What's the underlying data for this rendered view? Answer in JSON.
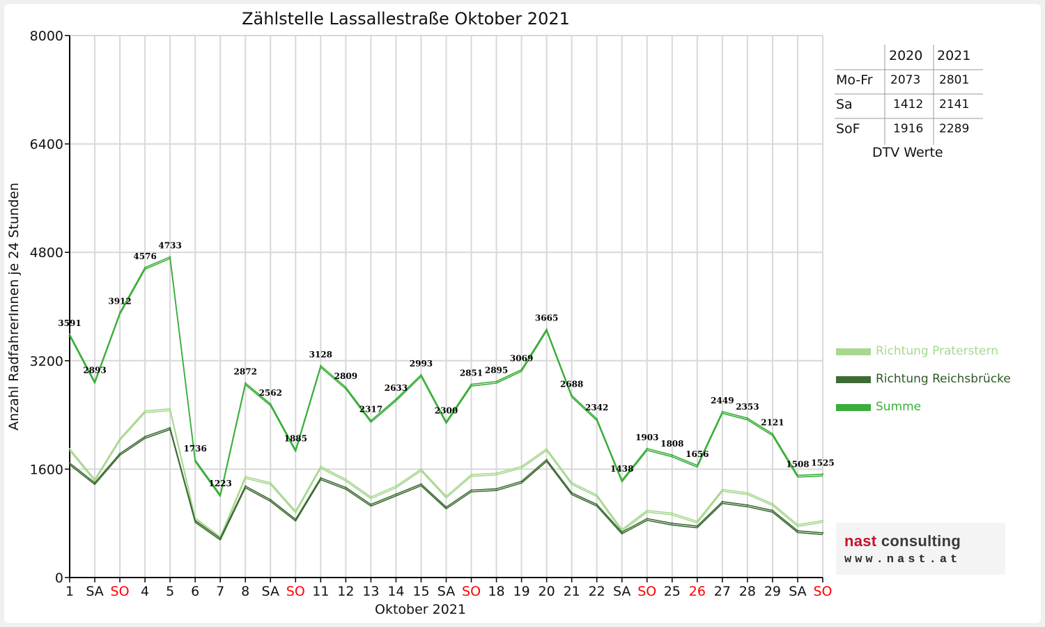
{
  "chart_data": {
    "type": "line",
    "title": "Zählstelle Lassallestraße Oktober 2021",
    "ylabel": "Anzahl RadfahrerInnen je 24 Stunden",
    "xlabel": "Oktober 2021",
    "ylim": [
      0,
      8000
    ],
    "yticks": [
      "0",
      "1600",
      "3200",
      "4800",
      "6400",
      "8000"
    ],
    "ytick_values": [
      0,
      1600,
      3200,
      4800,
      6400,
      8000
    ],
    "grid": true,
    "legend_position": "right",
    "categories": [
      "1",
      "SA",
      "SO",
      "4",
      "5",
      "6",
      "7",
      "8",
      "SA",
      "SO",
      "11",
      "12",
      "13",
      "14",
      "15",
      "SA",
      "SO",
      "18",
      "19",
      "20",
      "21",
      "22",
      "SA",
      "SO",
      "25",
      "26",
      "27",
      "28",
      "29",
      "SA",
      "SO"
    ],
    "red_categories": [
      2,
      9,
      16,
      23,
      25,
      30
    ],
    "series": [
      {
        "name": "Richtung Praterstern",
        "color": "#a8d890",
        "values": [
          1900,
          1450,
          2050,
          2460,
          2490,
          880,
          600,
          1490,
          1400,
          980,
          1640,
          1450,
          1190,
          1350,
          1600,
          1200,
          1520,
          1540,
          1640,
          1900,
          1400,
          1220,
          710,
          990,
          950,
          830,
          1300,
          1250,
          1090,
          780,
          840
        ]
      },
      {
        "name": "Richtung Reichsbrücke",
        "color": "#3e6b34",
        "values": [
          1690,
          1400,
          1830,
          2080,
          2210,
          840,
          580,
          1350,
          1150,
          860,
          1470,
          1330,
          1080,
          1230,
          1380,
          1040,
          1290,
          1310,
          1420,
          1740,
          1250,
          1080,
          670,
          870,
          800,
          760,
          1120,
          1070,
          990,
          690,
          660
        ]
      },
      {
        "name": "Summe",
        "color": "#3aae3a",
        "values": [
          3591,
          2893,
          3912,
          4576,
          4733,
          1736,
          1223,
          2872,
          2562,
          1885,
          3128,
          2809,
          2317,
          2633,
          2993,
          2300,
          2851,
          2895,
          3069,
          3665,
          2688,
          2342,
          1438,
          1903,
          1808,
          1656,
          2449,
          2353,
          2121,
          1508,
          1525
        ],
        "labels": [
          "3591",
          "2893",
          "3912",
          "4576",
          "4733",
          "1736",
          "1223",
          "2872",
          "2562",
          "1885",
          "3128",
          "2809",
          "2317",
          "2633",
          "2993",
          "2300",
          "2851",
          "2895",
          "3069",
          "3665",
          "2688",
          "2342",
          "1438",
          "1903",
          "1808",
          "1656",
          "2449",
          "2353",
          "2121",
          "1508",
          "1525"
        ]
      }
    ]
  },
  "dtv_table": {
    "header": [
      "",
      "2020",
      "2021"
    ],
    "rows": [
      {
        "label": "Mo-Fr",
        "y2020": "2073",
        "y2021": "2801"
      },
      {
        "label": "Sa",
        "y2020": "1412",
        "y2021": "2141"
      },
      {
        "label": "SoF",
        "y2020": "1916",
        "y2021": "2289"
      }
    ],
    "caption": "DTV Werte"
  },
  "logo": {
    "name_part1": "nast",
    "name_part2": " consulting",
    "url": "www.nast.at"
  },
  "colors": {
    "weekend_red": "#ff0000",
    "grid": "#d8d8d8",
    "axis": "#000000"
  }
}
